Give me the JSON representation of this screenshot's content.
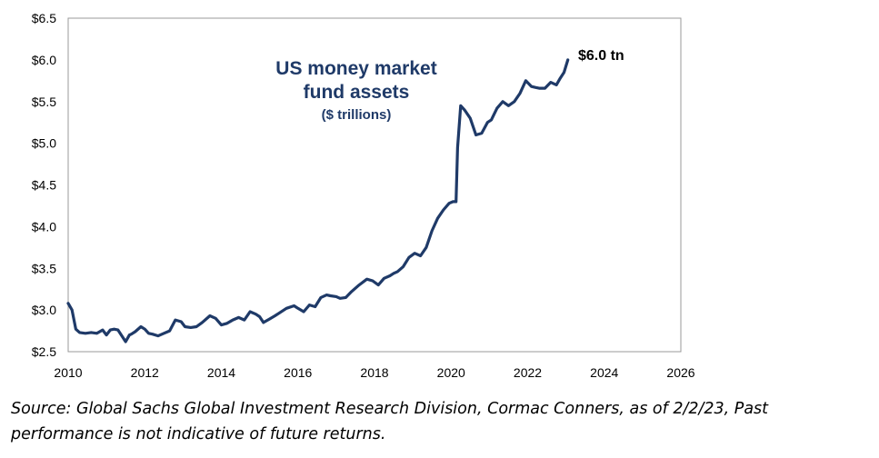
{
  "chart_data": {
    "type": "line",
    "title": "US money market fund assets",
    "title_lines": [
      "US money market",
      "fund assets"
    ],
    "subtitle": "($ trillions)",
    "end_label": "$6.0 tn",
    "xlim": [
      2010,
      2026
    ],
    "ylim": [
      2.5,
      6.5
    ],
    "x_ticks": [
      "2010",
      "2012",
      "2014",
      "2016",
      "2018",
      "2020",
      "2022",
      "2024",
      "2026"
    ],
    "y_ticks": [
      "$2.5",
      "$3.0",
      "$3.5",
      "$4.0",
      "$4.5",
      "$5.0",
      "$5.5",
      "$6.0",
      "$6.5"
    ],
    "grid": false,
    "line_color": "#1f3a68",
    "series": [
      {
        "x": [
          2010.0,
          2010.1,
          2010.2,
          2010.3,
          2010.45,
          2010.6,
          2010.75,
          2010.9,
          2011.0,
          2011.1,
          2011.2,
          2011.3,
          2011.5,
          2011.6,
          2011.65,
          2011.75,
          2011.9,
          2012.0,
          2012.1,
          2012.2,
          2012.35,
          2012.5,
          2012.65,
          2012.8,
          2012.95,
          2013.05,
          2013.2,
          2013.35,
          2013.5,
          2013.7,
          2013.85,
          2014.0,
          2014.15,
          2014.3,
          2014.45,
          2014.6,
          2014.75,
          2014.9,
          2015.0,
          2015.1,
          2015.25,
          2015.4,
          2015.5,
          2015.7,
          2015.9,
          2016.0,
          2016.15,
          2016.3,
          2016.45,
          2016.6,
          2016.75,
          2016.85,
          2017.0,
          2017.1,
          2017.25,
          2017.4,
          2017.6,
          2017.8,
          2017.95,
          2018.1,
          2018.25,
          2018.4,
          2018.5,
          2018.6,
          2018.75,
          2018.9,
          2019.05,
          2019.2,
          2019.35,
          2019.5,
          2019.65,
          2019.8,
          2019.95,
          2020.05,
          2020.13,
          2020.17,
          2020.25,
          2020.35,
          2020.5,
          2020.65,
          2020.8,
          2020.95,
          2021.05,
          2021.2,
          2021.35,
          2021.5,
          2021.65,
          2021.8,
          2021.95,
          2022.1,
          2022.2,
          2022.3,
          2022.45,
          2022.6,
          2022.75,
          2022.85,
          2022.95,
          2023.05
        ],
        "y": [
          3.08,
          3.0,
          2.77,
          2.73,
          2.72,
          2.73,
          2.72,
          2.76,
          2.7,
          2.76,
          2.77,
          2.76,
          2.62,
          2.7,
          2.71,
          2.74,
          2.8,
          2.77,
          2.72,
          2.71,
          2.69,
          2.72,
          2.75,
          2.88,
          2.86,
          2.8,
          2.79,
          2.8,
          2.85,
          2.93,
          2.9,
          2.82,
          2.84,
          2.88,
          2.91,
          2.88,
          2.98,
          2.95,
          2.92,
          2.85,
          2.89,
          2.93,
          2.96,
          3.02,
          3.05,
          3.02,
          2.98,
          3.06,
          3.04,
          3.15,
          3.18,
          3.17,
          3.16,
          3.14,
          3.15,
          3.22,
          3.3,
          3.37,
          3.35,
          3.3,
          3.38,
          3.41,
          3.44,
          3.46,
          3.52,
          3.63,
          3.68,
          3.65,
          3.75,
          3.95,
          4.1,
          4.2,
          4.28,
          4.3,
          4.3,
          4.95,
          5.45,
          5.4,
          5.3,
          5.1,
          5.12,
          5.25,
          5.28,
          5.42,
          5.5,
          5.45,
          5.5,
          5.6,
          5.75,
          5.68,
          5.67,
          5.66,
          5.66,
          5.73,
          5.7,
          5.78,
          5.85,
          6.0
        ]
      }
    ]
  },
  "source": "Source: Global Sachs Global Investment Research Division, Cormac Conners, as of 2/2/23, Past performance is not indicative of future returns."
}
